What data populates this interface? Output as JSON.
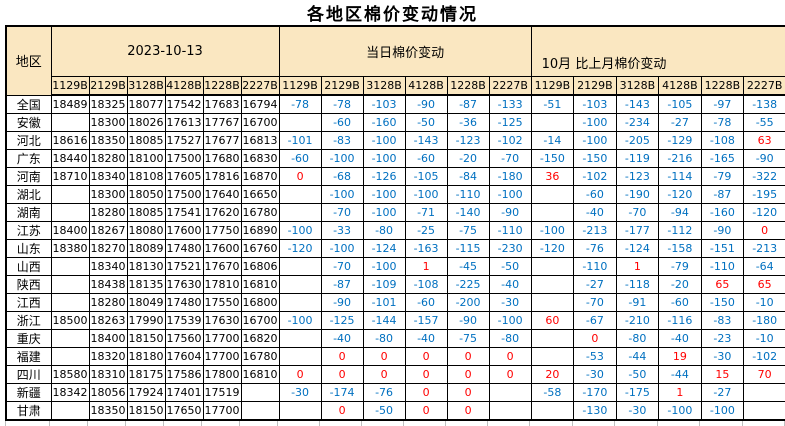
{
  "title": "各地区棉价变动情况",
  "colors": {
    "header_bg": "#FAE7C1",
    "grid_border": "#000000",
    "price_text": "#000000",
    "negative_change_text": "#0070C0",
    "non_negative_change_text": "#FF0000",
    "gridline_stub": "#BFBFBF"
  },
  "table": {
    "region_header": "地区",
    "groups": [
      {
        "label": "2023-10-13",
        "subcols": [
          "1129B",
          "2129B",
          "3128B",
          "4128B",
          "1228B",
          "2227B"
        ]
      },
      {
        "label": "当日棉价变动",
        "subcols": [
          "1129B",
          "2129B",
          "3128B",
          "4128B",
          "1228B",
          "2227B"
        ]
      },
      {
        "label": "10月 比上月棉价变动",
        "subcols": [
          "1129B",
          "2129B",
          "3128B",
          "4128B",
          "1228B",
          "2227B"
        ]
      }
    ],
    "rows": [
      {
        "region": "全国",
        "prices": [
          "18489",
          "18325",
          "18077",
          "17542",
          "17683",
          "16794"
        ],
        "daily": [
          "-78",
          "-78",
          "-103",
          "-90",
          "-87",
          "-133"
        ],
        "monthly": [
          "-51",
          "-103",
          "-143",
          "-105",
          "-97",
          "-138"
        ]
      },
      {
        "region": "安徽",
        "prices": [
          "",
          "18300",
          "18026",
          "17613",
          "17767",
          "16700"
        ],
        "daily": [
          "",
          "-60",
          "-160",
          "-50",
          "-36",
          "-125"
        ],
        "monthly": [
          "",
          "-100",
          "-234",
          "-27",
          "-78",
          "-55"
        ]
      },
      {
        "region": "河北",
        "prices": [
          "18616",
          "18350",
          "18085",
          "17527",
          "17677",
          "16813"
        ],
        "daily": [
          "-101",
          "-83",
          "-100",
          "-143",
          "-123",
          "-102"
        ],
        "monthly": [
          "-14",
          "-100",
          "-205",
          "-129",
          "-108",
          "63"
        ]
      },
      {
        "region": "广东",
        "prices": [
          "18440",
          "18280",
          "18100",
          "17500",
          "17680",
          "16830"
        ],
        "daily": [
          "-60",
          "-100",
          "-100",
          "-60",
          "-20",
          "-70"
        ],
        "monthly": [
          "-150",
          "-150",
          "-119",
          "-216",
          "-165",
          "-90"
        ]
      },
      {
        "region": "河南",
        "prices": [
          "18710",
          "18340",
          "18108",
          "17605",
          "17816",
          "16870"
        ],
        "daily": [
          "0",
          "-68",
          "-126",
          "-105",
          "-84",
          "-180"
        ],
        "monthly": [
          "36",
          "-102",
          "-123",
          "-114",
          "-79",
          "-322"
        ]
      },
      {
        "region": "湖北",
        "prices": [
          "",
          "18300",
          "18050",
          "17500",
          "17640",
          "16650"
        ],
        "daily": [
          "",
          "-100",
          "-100",
          "-100",
          "-110",
          "-100"
        ],
        "monthly": [
          "",
          "-60",
          "-190",
          "-120",
          "-87",
          "-195"
        ]
      },
      {
        "region": "湖南",
        "prices": [
          "",
          "18280",
          "18085",
          "17541",
          "17620",
          "16780"
        ],
        "daily": [
          "",
          "-70",
          "-100",
          "-71",
          "-140",
          "-90"
        ],
        "monthly": [
          "",
          "-40",
          "-70",
          "-94",
          "-160",
          "-120"
        ]
      },
      {
        "region": "江苏",
        "prices": [
          "18400",
          "18267",
          "18080",
          "17600",
          "17750",
          "16890"
        ],
        "daily": [
          "-100",
          "-33",
          "-80",
          "-25",
          "-75",
          "-110"
        ],
        "monthly": [
          "-100",
          "-213",
          "-177",
          "-112",
          "-90",
          "0"
        ]
      },
      {
        "region": "山东",
        "prices": [
          "18380",
          "18270",
          "18089",
          "17480",
          "17600",
          "16760"
        ],
        "daily": [
          "-120",
          "-100",
          "-124",
          "-163",
          "-115",
          "-230"
        ],
        "monthly": [
          "-120",
          "-76",
          "-124",
          "-158",
          "-151",
          "-213"
        ]
      },
      {
        "region": "山西",
        "prices": [
          "",
          "18340",
          "18130",
          "17521",
          "17670",
          "16806"
        ],
        "daily": [
          "",
          "-70",
          "-100",
          "1",
          "-45",
          "-50"
        ],
        "monthly": [
          "",
          "-110",
          "1",
          "-79",
          "-110",
          "-64"
        ]
      },
      {
        "region": "陕西",
        "prices": [
          "",
          "18438",
          "18135",
          "17630",
          "17810",
          "16810"
        ],
        "daily": [
          "",
          "-87",
          "-109",
          "-108",
          "-225",
          "-40"
        ],
        "monthly": [
          "",
          "-27",
          "-118",
          "-20",
          "65",
          "65"
        ]
      },
      {
        "region": "江西",
        "prices": [
          "",
          "18280",
          "18049",
          "17480",
          "17550",
          "16800"
        ],
        "daily": [
          "",
          "-90",
          "-101",
          "-60",
          "-200",
          "-30"
        ],
        "monthly": [
          "",
          "-70",
          "-91",
          "-60",
          "-150",
          "-10"
        ]
      },
      {
        "region": "浙江",
        "prices": [
          "18500",
          "18263",
          "17990",
          "17539",
          "17630",
          "16700"
        ],
        "daily": [
          "-100",
          "-125",
          "-144",
          "-157",
          "-90",
          "-100"
        ],
        "monthly": [
          "60",
          "-67",
          "-210",
          "-116",
          "-83",
          "-180"
        ]
      },
      {
        "region": "重庆",
        "prices": [
          "",
          "18400",
          "18150",
          "17560",
          "17700",
          "16820"
        ],
        "daily": [
          "",
          "-40",
          "-80",
          "-40",
          "-75",
          "-80"
        ],
        "monthly": [
          "",
          "0",
          "-80",
          "-40",
          "-23",
          "-10"
        ]
      },
      {
        "region": "福建",
        "prices": [
          "",
          "18320",
          "18180",
          "17604",
          "17700",
          "16780"
        ],
        "daily": [
          "",
          "0",
          "0",
          "0",
          "0",
          "0"
        ],
        "monthly": [
          "",
          "-53",
          "-44",
          "19",
          "-30",
          "-102"
        ]
      },
      {
        "region": "四川",
        "prices": [
          "18580",
          "18310",
          "18175",
          "17586",
          "17800",
          "16810"
        ],
        "daily": [
          "0",
          "0",
          "0",
          "0",
          "0",
          "0"
        ],
        "monthly": [
          "20",
          "-30",
          "-50",
          "-44",
          "15",
          "70"
        ]
      },
      {
        "region": "新疆",
        "prices": [
          "18342",
          "18056",
          "17924",
          "17401",
          "17519",
          ""
        ],
        "daily": [
          "-30",
          "-174",
          "-76",
          "0",
          "0",
          ""
        ],
        "monthly": [
          "-58",
          "-170",
          "-175",
          "1",
          "-27",
          ""
        ]
      },
      {
        "region": "甘肃",
        "prices": [
          "",
          "18350",
          "18150",
          "17650",
          "17700",
          ""
        ],
        "daily": [
          "",
          "0",
          "-50",
          "0",
          "0",
          ""
        ],
        "monthly": [
          "",
          "-130",
          "-30",
          "-100",
          "-100",
          ""
        ]
      }
    ]
  }
}
